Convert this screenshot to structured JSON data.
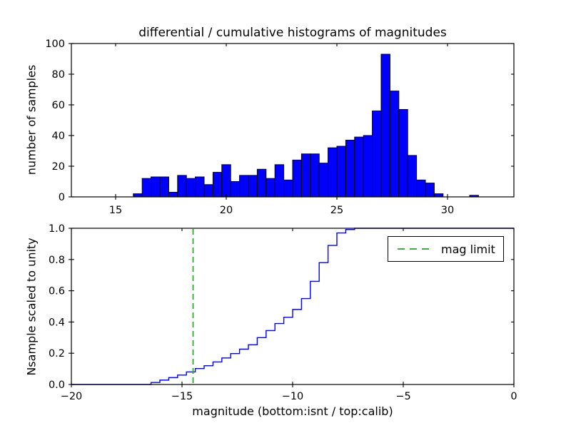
{
  "chart_data": [
    {
      "type": "bar",
      "subtype": "histogram",
      "title": "differential / cumulative histograms of magnitudes",
      "xlabel": "",
      "ylabel": "number of samples",
      "xlim": [
        13,
        33
      ],
      "ylim": [
        0,
        100
      ],
      "xticks": [
        15,
        20,
        25,
        30
      ],
      "xtick_labels": [
        "15",
        "20",
        "25",
        "30"
      ],
      "yticks": [
        0,
        20,
        40,
        60,
        80,
        100
      ],
      "ytick_labels": [
        "0",
        "20",
        "40",
        "60",
        "80",
        "100"
      ],
      "bin_start": 13.0,
      "bin_width": 0.4,
      "bar_color": "#0000ff",
      "bar_edge_color": "#000000",
      "counts": [
        0,
        0,
        0,
        0,
        0,
        0,
        0,
        2,
        12,
        13,
        13,
        3,
        14,
        12,
        13,
        8,
        16,
        21,
        10,
        14,
        14,
        18,
        12,
        21,
        11,
        24,
        28,
        28,
        22,
        32,
        33,
        37,
        39,
        40,
        56,
        93,
        69,
        57,
        27,
        11,
        9,
        2,
        0,
        0,
        0,
        1,
        0,
        0,
        0,
        0
      ]
    },
    {
      "type": "line",
      "subtype": "cumulative-step",
      "xlabel": "magnitude (bottom:isnt / top:calib)",
      "ylabel": "Nsample scaled to unity",
      "xlim": [
        -20,
        0
      ],
      "ylim": [
        0.0,
        1.0
      ],
      "xticks": [
        -20,
        -15,
        -10,
        -5,
        0
      ],
      "xtick_labels": [
        "−20",
        "−15",
        "−10",
        "−5",
        "0"
      ],
      "yticks": [
        0.0,
        0.2,
        0.4,
        0.6,
        0.8,
        1.0
      ],
      "ytick_labels": [
        "0.0",
        "0.2",
        "0.4",
        "0.6",
        "0.8",
        "1.0"
      ],
      "line_color": "#0000ff",
      "steps": [
        [
          -20.0,
          0.0
        ],
        [
          -16.4,
          0.013
        ],
        [
          -16.0,
          0.028
        ],
        [
          -15.6,
          0.044
        ],
        [
          -15.2,
          0.06
        ],
        [
          -14.8,
          0.08
        ],
        [
          -14.4,
          0.102
        ],
        [
          -14.0,
          0.12
        ],
        [
          -13.6,
          0.144
        ],
        [
          -13.2,
          0.17
        ],
        [
          -12.8,
          0.198
        ],
        [
          -12.4,
          0.226
        ],
        [
          -12.0,
          0.254
        ],
        [
          -11.6,
          0.3
        ],
        [
          -11.2,
          0.345
        ],
        [
          -10.8,
          0.39
        ],
        [
          -10.4,
          0.43
        ],
        [
          -10.0,
          0.48
        ],
        [
          -9.6,
          0.55
        ],
        [
          -9.2,
          0.66
        ],
        [
          -8.8,
          0.78
        ],
        [
          -8.4,
          0.89
        ],
        [
          -8.0,
          0.97
        ],
        [
          -7.6,
          0.992
        ],
        [
          -7.2,
          1.0
        ],
        [
          0.0,
          1.0
        ]
      ],
      "vline": {
        "x": -14.5,
        "color": "#2ca02c",
        "style": "dashed",
        "label": "mag limit"
      },
      "legend": {
        "label": "mag limit",
        "position": "upper right"
      }
    }
  ],
  "colors": {
    "background": "#ffffff",
    "bar_fill": "#0000ff",
    "curve": "#0000ff",
    "mag_limit_line": "#2ca02c",
    "axes": "#000000"
  }
}
